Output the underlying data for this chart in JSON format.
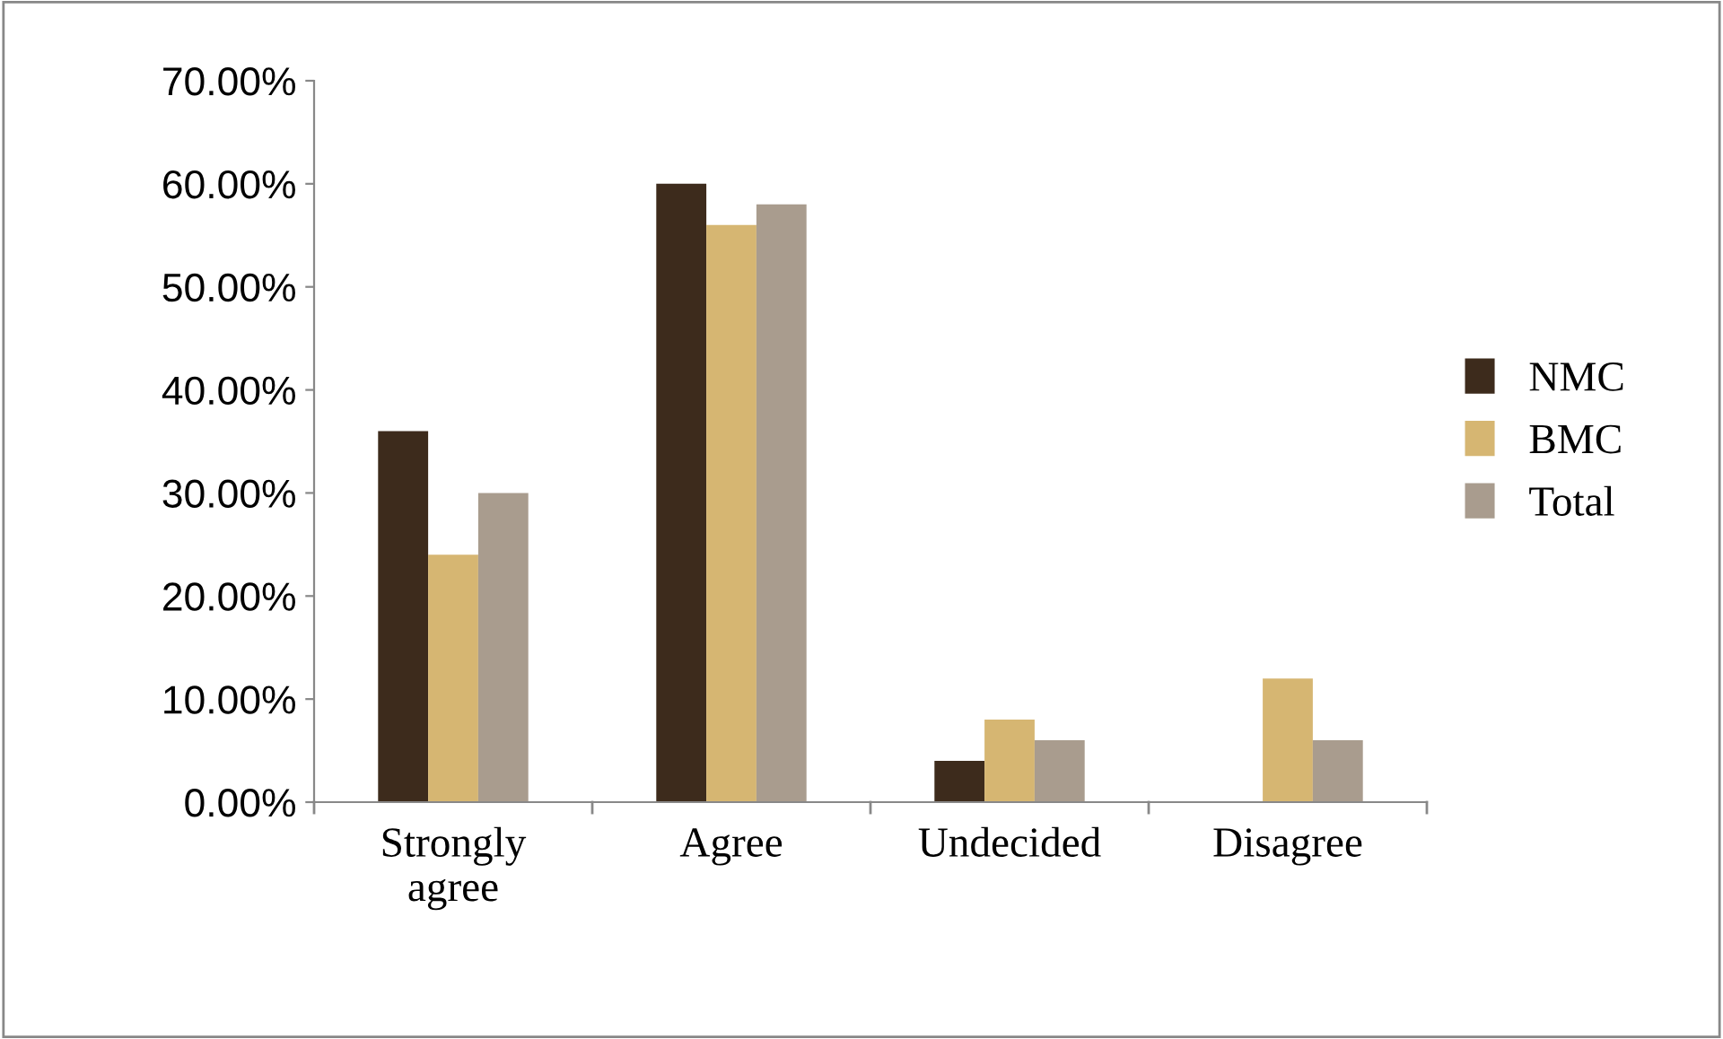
{
  "chart_data": {
    "type": "bar",
    "categories": [
      "Strongly\nagree",
      "Agree",
      "Undecided",
      "Disagree"
    ],
    "series": [
      {
        "name": "NMC",
        "color": "#3d2b1c",
        "values": [
          36,
          60,
          4,
          0
        ]
      },
      {
        "name": "BMC",
        "color": "#d6b672",
        "values": [
          24,
          56,
          8,
          12
        ]
      },
      {
        "name": "Total",
        "color": "#a99c8e",
        "values": [
          30,
          58,
          6,
          6
        ]
      }
    ],
    "ylim": [
      0,
      70
    ],
    "yticks": [
      {
        "value": 0,
        "label": "0.00%"
      },
      {
        "value": 10,
        "label": "10.00%"
      },
      {
        "value": 20,
        "label": "20.00%"
      },
      {
        "value": 30,
        "label": "30.00%"
      },
      {
        "value": 40,
        "label": "40.00%"
      },
      {
        "value": 50,
        "label": "50.00%"
      },
      {
        "value": 60,
        "label": "60.00%"
      },
      {
        "value": 70,
        "label": "70.00%"
      }
    ],
    "legend": "right"
  }
}
